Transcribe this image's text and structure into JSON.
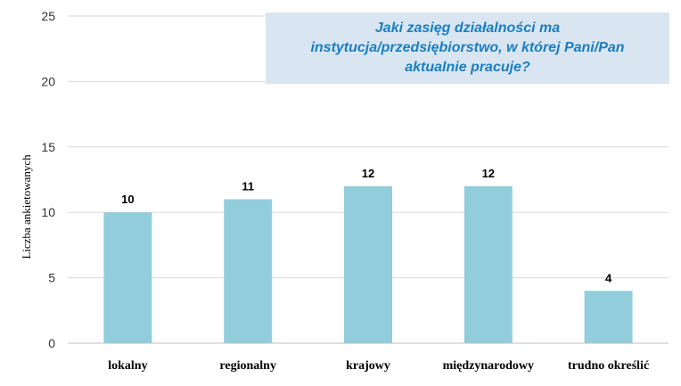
{
  "chart_data": {
    "type": "bar",
    "title_lines": [
      "Jaki zasięg działalności ma",
      "instytucja/przedsiębiorstwo, w której Pani/Pan",
      "aktualnie pracuje?"
    ],
    "ylabel": "Liczba ankietowanych",
    "categories": [
      "lokalny",
      "regionalny",
      "krajowy",
      "międzynarodowy",
      "trudno określić"
    ],
    "values": [
      10,
      11,
      12,
      12,
      4
    ],
    "ylim": [
      0,
      25
    ],
    "yticks": [
      0,
      5,
      10,
      15,
      20,
      25
    ],
    "grid": true,
    "legend": "none",
    "colors": {
      "bar": "#92cddc",
      "grid": "#d9d9d9",
      "title_text": "#1a7fc1",
      "title_bg": "#d9e5f0"
    }
  }
}
